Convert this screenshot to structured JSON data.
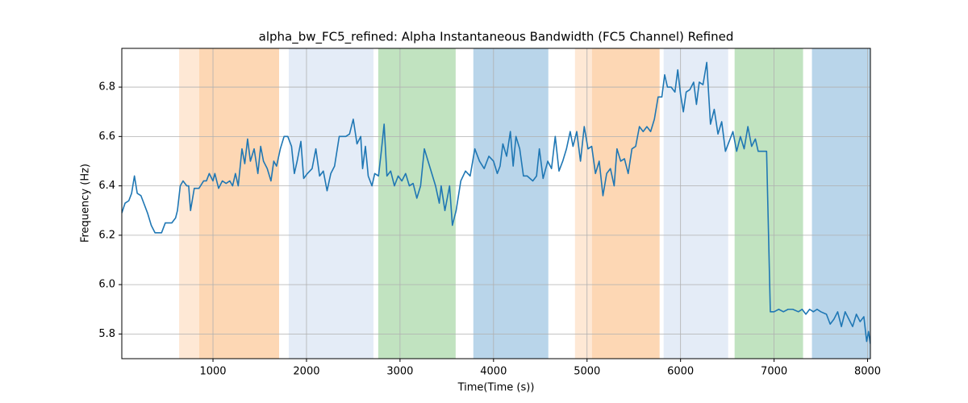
{
  "chart_data": {
    "type": "line",
    "title": "alpha_bw_FC5_refined: Alpha Instantaneous Bandwidth (FC5 Channel) Refined",
    "x_label": "Time(Time (s))",
    "y_label": "Frequency (Hz)",
    "xlim": [
      25,
      8030
    ],
    "ylim": [
      5.7,
      6.957
    ],
    "xticks": [
      1000,
      2000,
      3000,
      4000,
      5000,
      6000,
      7000,
      8000
    ],
    "yticks": [
      5.8,
      {
        "value": 6,
        "label": "6.0"
      },
      6.2,
      6.4,
      6.6,
      6.8
    ],
    "grid": true,
    "regions": [
      {
        "start": 638,
        "end": 853,
        "color": "#fee8d5"
      },
      {
        "start": 853,
        "end": 1707,
        "color": "#fdd7b4"
      },
      {
        "start": 1810,
        "end": 2716,
        "color": "#e4ecf7"
      },
      {
        "start": 2767,
        "end": 3595,
        "color": "#c1e3c0"
      },
      {
        "start": 3784,
        "end": 4586,
        "color": "#b9d5ea"
      },
      {
        "start": 4871,
        "end": 5052,
        "color": "#fee8d5"
      },
      {
        "start": 5052,
        "end": 5776,
        "color": "#fdd7b4"
      },
      {
        "start": 5819,
        "end": 6509,
        "color": "#e4ecf7"
      },
      {
        "start": 6578,
        "end": 7310,
        "color": "#c1e3c0"
      },
      {
        "start": 7405,
        "end": 8030,
        "color": "#b9d5ea"
      }
    ],
    "series": [
      {
        "color": "#1f77b4",
        "x": [
          25,
          60,
          100,
          130,
          160,
          190,
          230,
          300,
          340,
          380,
          450,
          490,
          560,
          600,
          620,
          650,
          680,
          720,
          740,
          760,
          800,
          850,
          900,
          930,
          960,
          1000,
          1020,
          1060,
          1100,
          1140,
          1180,
          1210,
          1240,
          1270,
          1310,
          1340,
          1370,
          1400,
          1440,
          1480,
          1510,
          1540,
          1580,
          1620,
          1650,
          1680,
          1720,
          1760,
          1800,
          1840,
          1870,
          1900,
          1940,
          1970,
          2010,
          2060,
          2100,
          2140,
          2180,
          2220,
          2260,
          2300,
          2350,
          2420,
          2460,
          2500,
          2540,
          2580,
          2600,
          2630,
          2660,
          2700,
          2730,
          2770,
          2800,
          2830,
          2860,
          2900,
          2940,
          2980,
          3020,
          3060,
          3100,
          3140,
          3180,
          3220,
          3260,
          3300,
          3340,
          3380,
          3420,
          3440,
          3480,
          3530,
          3560,
          3600,
          3650,
          3700,
          3750,
          3800,
          3850,
          3900,
          3950,
          4000,
          4040,
          4070,
          4100,
          4140,
          4180,
          4210,
          4240,
          4280,
          4320,
          4360,
          4420,
          4460,
          4490,
          4530,
          4580,
          4620,
          4660,
          4700,
          4740,
          4780,
          4820,
          4850,
          4890,
          4930,
          4970,
          5010,
          5050,
          5090,
          5130,
          5170,
          5210,
          5250,
          5290,
          5320,
          5360,
          5400,
          5440,
          5480,
          5520,
          5560,
          5600,
          5640,
          5680,
          5720,
          5760,
          5800,
          5830,
          5860,
          5900,
          5940,
          5970,
          6000,
          6030,
          6060,
          6100,
          6140,
          6170,
          6200,
          6240,
          6280,
          6320,
          6360,
          6400,
          6440,
          6480,
          6520,
          6560,
          6600,
          6640,
          6680,
          6720,
          6760,
          6800,
          6830,
          6870,
          6920,
          6960,
          7000,
          7050,
          7100,
          7150,
          7200,
          7260,
          7300,
          7340,
          7380,
          7420,
          7460,
          7500,
          7560,
          7600,
          7640,
          7680,
          7720,
          7760,
          7800,
          7840,
          7880,
          7920,
          7960,
          7990,
          8010,
          8030
        ],
        "values": [
          6.29,
          6.33,
          6.34,
          6.37,
          6.44,
          6.37,
          6.36,
          6.29,
          6.24,
          6.21,
          6.21,
          6.25,
          6.25,
          6.27,
          6.3,
          6.4,
          6.42,
          6.4,
          6.4,
          6.3,
          6.39,
          6.39,
          6.42,
          6.42,
          6.45,
          6.42,
          6.45,
          6.39,
          6.42,
          6.41,
          6.42,
          6.4,
          6.45,
          6.4,
          6.55,
          6.49,
          6.59,
          6.5,
          6.55,
          6.45,
          6.56,
          6.5,
          6.47,
          6.42,
          6.5,
          6.48,
          6.55,
          6.6,
          6.6,
          6.56,
          6.45,
          6.5,
          6.58,
          6.43,
          6.45,
          6.47,
          6.55,
          6.44,
          6.46,
          6.38,
          6.45,
          6.48,
          6.6,
          6.6,
          6.61,
          6.67,
          6.57,
          6.6,
          6.47,
          6.56,
          6.44,
          6.4,
          6.45,
          6.44,
          6.54,
          6.65,
          6.44,
          6.46,
          6.4,
          6.44,
          6.42,
          6.45,
          6.4,
          6.41,
          6.35,
          6.4,
          6.55,
          6.5,
          6.45,
          6.4,
          6.33,
          6.4,
          6.3,
          6.4,
          6.24,
          6.3,
          6.42,
          6.46,
          6.44,
          6.55,
          6.5,
          6.47,
          6.52,
          6.5,
          6.45,
          6.48,
          6.57,
          6.52,
          6.62,
          6.48,
          6.6,
          6.55,
          6.44,
          6.44,
          6.42,
          6.44,
          6.55,
          6.43,
          6.5,
          6.47,
          6.6,
          6.46,
          6.5,
          6.55,
          6.62,
          6.56,
          6.62,
          6.5,
          6.64,
          6.55,
          6.56,
          6.45,
          6.5,
          6.36,
          6.45,
          6.47,
          6.4,
          6.55,
          6.5,
          6.51,
          6.45,
          6.55,
          6.56,
          6.64,
          6.62,
          6.64,
          6.62,
          6.67,
          6.76,
          6.76,
          6.85,
          6.8,
          6.8,
          6.78,
          6.87,
          6.77,
          6.7,
          6.78,
          6.79,
          6.82,
          6.73,
          6.82,
          6.81,
          6.9,
          6.65,
          6.71,
          6.61,
          6.66,
          6.54,
          6.58,
          6.62,
          6.54,
          6.6,
          6.55,
          6.64,
          6.56,
          6.59,
          6.54,
          6.54,
          6.54,
          5.89,
          5.89,
          5.9,
          5.89,
          5.9,
          5.9,
          5.89,
          5.9,
          5.88,
          5.9,
          5.89,
          5.9,
          5.89,
          5.88,
          5.84,
          5.86,
          5.89,
          5.83,
          5.89,
          5.86,
          5.83,
          5.88,
          5.85,
          5.87,
          5.77,
          5.81,
          5.76
        ]
      }
    ]
  }
}
